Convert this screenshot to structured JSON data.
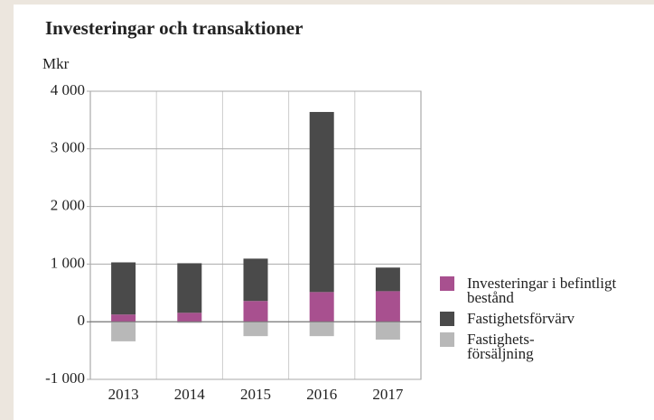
{
  "chart_data": {
    "type": "stacked-bar",
    "title": "Investeringar och transaktioner",
    "y_label": "Mkr",
    "categories": [
      "2013",
      "2014",
      "2015",
      "2016",
      "2017"
    ],
    "series": [
      {
        "name": "Investeringar i befintligt bestånd",
        "color": "#a8508f",
        "values": [
          125,
          155,
          360,
          515,
          530
        ]
      },
      {
        "name": "Fastighetsförvärv",
        "color": "#4a4a4a",
        "values": [
          905,
          860,
          735,
          3125,
          410
        ]
      },
      {
        "name": "Fastighets-försäljning",
        "color": "#b8b8b8",
        "values": [
          -340,
          -20,
          -250,
          -250,
          -310
        ]
      }
    ],
    "ylim": [
      -1000,
      4000
    ],
    "yticks": [
      {
        "value": -1000,
        "label": "-1 000"
      },
      0,
      {
        "value": 1000,
        "label": "1 000"
      },
      {
        "value": 2000,
        "label": "2 000"
      },
      {
        "value": 3000,
        "label": "3 000"
      },
      {
        "value": 4000,
        "label": "4 000"
      }
    ],
    "grid": true,
    "legend": "right"
  }
}
